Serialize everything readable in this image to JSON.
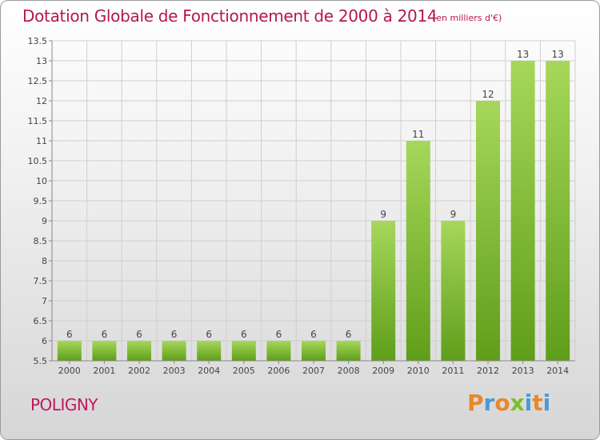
{
  "header": {
    "title": "Dotation Globale de Fonctionnement de 2000 à 2014",
    "unit": "(en milliers d'€)"
  },
  "footer": {
    "commune": "POLIGNY",
    "logo": "Proxiti"
  },
  "colors": {
    "title": "#b5174e",
    "bar_light": "#a6d75a",
    "bar_dark": "#5f9e1a",
    "grid": "#cfcfcf",
    "logo_letters": [
      "#e9872a",
      "#4a9ad4",
      "#e9872a",
      "#7cbf2a",
      "#4a9ad4",
      "#e9872a",
      "#4a9ad4"
    ]
  },
  "chart_data": {
    "type": "bar",
    "title": "Dotation Globale de Fonctionnement de 2000 à 2014",
    "xlabel": "",
    "ylabel": "(en milliers d'€)",
    "categories": [
      "2000",
      "2001",
      "2002",
      "2003",
      "2004",
      "2005",
      "2006",
      "2007",
      "2008",
      "2009",
      "2010",
      "2011",
      "2012",
      "2013",
      "2014"
    ],
    "values": [
      6,
      6,
      6,
      6,
      6,
      6,
      6,
      6,
      6,
      9,
      11,
      9,
      12,
      13,
      13
    ],
    "value_labels": [
      "6",
      "6",
      "6",
      "6",
      "6",
      "6",
      "6",
      "6",
      "6",
      "9",
      "11",
      "9",
      "12",
      "13",
      "13"
    ],
    "ylim": [
      5.5,
      13.5
    ],
    "yticks": [
      5.5,
      6,
      6.5,
      7,
      7.5,
      8,
      8.5,
      9,
      9.5,
      10,
      10.5,
      11,
      11.5,
      12,
      12.5,
      13,
      13.5
    ],
    "ytick_labels": [
      "5.5",
      "6",
      "6.5",
      "7",
      "7.5",
      "8",
      "8.5",
      "9",
      "9.5",
      "10",
      "10.5",
      "11",
      "11.5",
      "12",
      "12.5",
      "13",
      "13.5"
    ],
    "grid": true
  }
}
